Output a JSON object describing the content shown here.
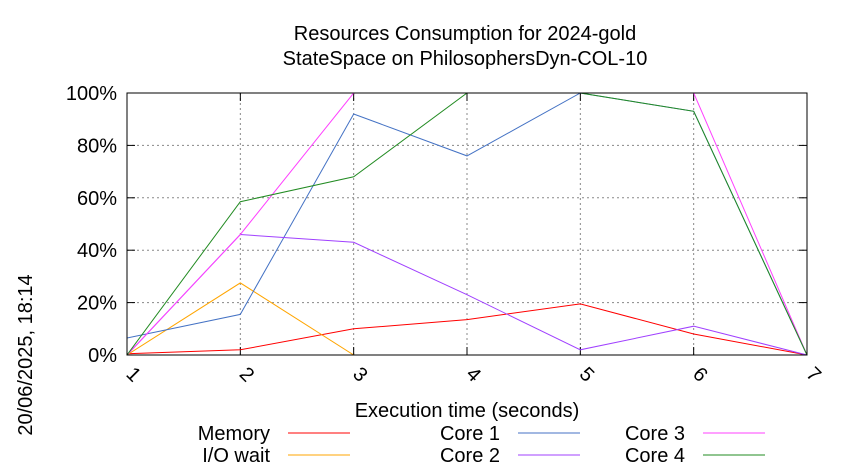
{
  "side_label": "20/06/2025, 18:14",
  "chart_data": {
    "type": "line",
    "title": "Resources Consumption for 2024-gold",
    "subtitle": "StateSpace on PhilosophersDyn-COL-10",
    "xlabel": "Execution time (seconds)",
    "ylabel": "",
    "x": [
      1,
      2,
      3,
      4,
      5,
      6,
      7
    ],
    "xlim": [
      1,
      7
    ],
    "ylim": [
      0,
      100
    ],
    "y_ticks": [
      "0%",
      "20%",
      "40%",
      "60%",
      "80%",
      "100%"
    ],
    "x_ticks": [
      "1",
      "2",
      "3",
      "4",
      "5",
      "6",
      "7"
    ],
    "grid": true,
    "legend_position": "bottom",
    "series": [
      {
        "name": "Memory",
        "color": "#ff0000",
        "values": [
          0.5,
          2,
          10,
          13.5,
          19.5,
          8,
          0
        ]
      },
      {
        "name": "I/O wait",
        "color": "#ffa500",
        "values": [
          0,
          27.5,
          0,
          0,
          0,
          0,
          0
        ]
      },
      {
        "name": "Core 1",
        "color": "#4472c4",
        "values": [
          6.5,
          15.5,
          92,
          76,
          100,
          93,
          0
        ]
      },
      {
        "name": "Core 2",
        "color": "#a040ff",
        "values": [
          0,
          46,
          43,
          23,
          2,
          11,
          0
        ]
      },
      {
        "name": "Core 3",
        "color": "#ff40ff",
        "values": [
          0,
          46,
          100,
          100,
          100,
          100,
          0
        ]
      },
      {
        "name": "Core 4",
        "color": "#228b22",
        "values": [
          0,
          58.5,
          68,
          100,
          100,
          93,
          0
        ]
      }
    ]
  }
}
